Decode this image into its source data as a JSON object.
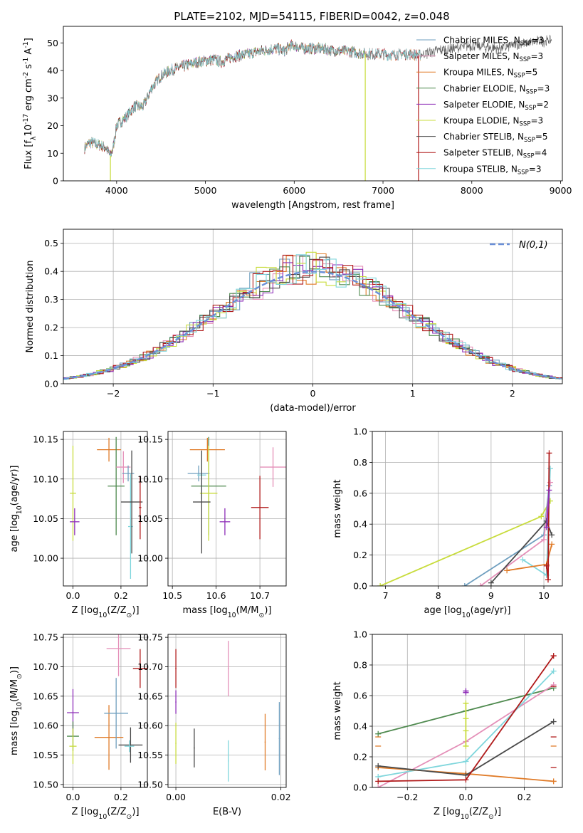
{
  "figure_title": "PLATE=2102, MJD=54115, FIBERID=0042, z=0.048",
  "colors": {
    "Chabrier MILES": "#6f9fbf",
    "Salpeter MILES": "#e48fb8",
    "Kroupa MILES": "#e07b28",
    "Chabrier ELODIE": "#4f8a4f",
    "Salpeter ELODIE": "#8e2eb8",
    "Kroupa ELODIE": "#c8dc3c",
    "Chabrier STELIB": "#4a4a4a",
    "Salpeter STELIB": "#b01a1a",
    "Kroupa STELIB": "#7fd6dc",
    "Gaussian": "#6a8fd8"
  },
  "chart_data": [
    {
      "id": "spectrum",
      "type": "line",
      "xlabel": "wavelength [Angstrom, rest frame]",
      "ylabel": "Flux [f$_\\lambda$10$^{-17}$ erg cm$^{-2}$ s$^{-1}$ A$^{-1}$]",
      "xlim": [
        3400,
        9020
      ],
      "ylim": [
        0,
        56
      ],
      "xticks": [
        4000,
        5000,
        6000,
        7000,
        8000,
        9000
      ],
      "yticks": [
        0,
        10,
        20,
        30,
        40,
        50
      ],
      "legend_position": "top-right",
      "legend": [
        {
          "model": "Chabrier MILES",
          "label": "Chabrier MILES, N",
          "n": "=3"
        },
        {
          "model": "Salpeter MILES",
          "label": "Salpeter MILES, N",
          "n": "=3"
        },
        {
          "model": "Kroupa MILES",
          "label": "Kroupa MILES, N",
          "n": "=5"
        },
        {
          "model": "Chabrier ELODIE",
          "label": "Chabrier ELODIE, N",
          "n": "=3"
        },
        {
          "model": "Salpeter ELODIE",
          "label": "Salpeter ELODIE, N",
          "n": "=2"
        },
        {
          "model": "Kroupa ELODIE",
          "label": "Kroupa ELODIE, N",
          "n": "=3"
        },
        {
          "model": "Chabrier STELIB",
          "label": "Chabrier STELIB, N",
          "n": "=5"
        },
        {
          "model": "Salpeter STELIB",
          "label": "Salpeter STELIB, N",
          "n": "=4"
        },
        {
          "model": "Kroupa STELIB",
          "label": "Kroupa STELIB, N",
          "n": "=3"
        }
      ],
      "legend_subscript": "SSP",
      "continuum": [
        [
          3640,
          12
        ],
        [
          3700,
          14
        ],
        [
          3800,
          13
        ],
        [
          3880,
          12
        ],
        [
          3930,
          9
        ],
        [
          3960,
          12
        ],
        [
          4000,
          20
        ],
        [
          4100,
          23
        ],
        [
          4200,
          27
        ],
        [
          4300,
          27
        ],
        [
          4400,
          34
        ],
        [
          4500,
          38
        ],
        [
          4600,
          40
        ],
        [
          4700,
          41
        ],
        [
          4800,
          42
        ],
        [
          4900,
          43
        ],
        [
          5000,
          43.5
        ],
        [
          5100,
          44
        ],
        [
          5180,
          43
        ],
        [
          5300,
          45
        ],
        [
          5400,
          45.5
        ],
        [
          5500,
          46
        ],
        [
          5600,
          47
        ],
        [
          5700,
          47.5
        ],
        [
          5800,
          48
        ],
        [
          5890,
          47
        ],
        [
          5950,
          49
        ],
        [
          6000,
          49
        ],
        [
          6100,
          48
        ],
        [
          6200,
          48
        ],
        [
          6300,
          48
        ],
        [
          6400,
          47.5
        ],
        [
          6500,
          47
        ],
        [
          6600,
          47
        ],
        [
          6700,
          46.5
        ],
        [
          6800,
          46
        ],
        [
          6900,
          46
        ],
        [
          7000,
          46
        ],
        [
          7100,
          45.5
        ],
        [
          7200,
          46
        ],
        [
          7300,
          46
        ],
        [
          7400,
          45.5
        ]
      ],
      "spikes": [
        {
          "model": "Kroupa ELODIE",
          "x": 3930,
          "y": 0
        },
        {
          "model": "Kroupa ELODIE",
          "x": 6800,
          "y": 0
        },
        {
          "model": "Salpeter STELIB",
          "x": 7400,
          "y": 0
        }
      ],
      "extension": [
        [
          7400,
          46
        ],
        [
          7600,
          47
        ],
        [
          7800,
          48
        ],
        [
          8000,
          49
        ],
        [
          8300,
          48
        ],
        [
          8600,
          50
        ],
        [
          8900,
          51
        ]
      ]
    },
    {
      "id": "residuals",
      "type": "step-histogram",
      "xlabel": "(data-model)/error",
      "ylabel": "Normed distribution",
      "xlim": [
        -2.5,
        2.5
      ],
      "ylim": [
        0,
        0.55
      ],
      "xticks": [
        -2,
        -1,
        0,
        1,
        2
      ],
      "yticks": [
        0.0,
        0.1,
        0.2,
        0.3,
        0.4,
        0.5
      ],
      "gaussian_label": "N(0,1)",
      "legend_position": "top-right",
      "bin_width": 0.1,
      "grid": true
    },
    {
      "id": "age_vs_Z",
      "type": "errorbar",
      "xlabel": "Z [log$_{10}$(Z/Z$_\\odot$)]",
      "ylabel": "age  [log$_{10}$(age/yr)]",
      "xlim": [
        -0.04,
        0.31
      ],
      "ylim": [
        9.965,
        10.16
      ],
      "xticks": [
        0.0,
        0.2
      ],
      "yticks": [
        10.0,
        10.05,
        10.1,
        10.15
      ],
      "points": [
        {
          "model": "Kroupa ELODIE",
          "x": 0.0,
          "y": 10.082,
          "xerr": 0.013,
          "yerr": 0.06
        },
        {
          "model": "Salpeter ELODIE",
          "x": 0.007,
          "y": 10.046,
          "xerr": 0.02,
          "yerr": 0.017
        },
        {
          "model": "Kroupa MILES",
          "x": 0.15,
          "y": 10.137,
          "xerr": 0.05,
          "yerr": 0.015
        },
        {
          "model": "Chabrier ELODIE",
          "x": 0.18,
          "y": 10.091,
          "xerr": 0.035,
          "yerr": 0.062
        },
        {
          "model": "Salpeter MILES",
          "x": 0.21,
          "y": 10.115,
          "xerr": 0.03,
          "yerr": 0.02
        },
        {
          "model": "Chabrier MILES",
          "x": 0.23,
          "y": 10.107,
          "xerr": 0.025,
          "yerr": 0.01
        },
        {
          "model": "Kroupa STELIB",
          "x": 0.24,
          "y": 10.04,
          "xerr": 0.01,
          "yerr": 0.066
        },
        {
          "model": "Chabrier STELIB",
          "x": 0.245,
          "y": 10.071,
          "xerr": 0.045,
          "yerr": 0.065
        },
        {
          "model": "Salpeter STELIB",
          "x": 0.28,
          "y": 10.064,
          "xerr": 0.005,
          "yerr": 0.04
        }
      ]
    },
    {
      "id": "age_vs_mass",
      "type": "errorbar",
      "xlabel": "mass [log$_{10}$(M/M$_\\odot$)]",
      "ylabel": "",
      "xlim": [
        10.49,
        10.76
      ],
      "ylim": [
        9.965,
        10.16
      ],
      "xticks": [
        10.5,
        10.6,
        10.7
      ],
      "yticks": [
        10.0,
        10.05,
        10.1,
        10.15
      ],
      "points": [
        {
          "model": "Kroupa MILES",
          "x": 10.58,
          "y": 10.137,
          "xerr": 0.04,
          "yerr": 0.015
        },
        {
          "model": "Chabrier MILES",
          "x": 10.56,
          "y": 10.107,
          "xerr": 0.025,
          "yerr": 0.01
        },
        {
          "model": "Kroupa STELIB",
          "x": 10.567,
          "y": 10.105,
          "xerr": 0.01,
          "yerr": 0.03
        },
        {
          "model": "Chabrier ELODIE",
          "x": 10.583,
          "y": 10.091,
          "xerr": 0.04,
          "yerr": 0.062
        },
        {
          "model": "Kroupa ELODIE",
          "x": 10.583,
          "y": 10.082,
          "xerr": 0.02,
          "yerr": 0.06
        },
        {
          "model": "Chabrier STELIB",
          "x": 10.567,
          "y": 10.071,
          "xerr": 0.02,
          "yerr": 0.065
        },
        {
          "model": "Salpeter ELODIE",
          "x": 10.62,
          "y": 10.046,
          "xerr": 0.012,
          "yerr": 0.017
        },
        {
          "model": "Salpeter STELIB",
          "x": 10.7,
          "y": 10.064,
          "xerr": 0.02,
          "yerr": 0.04
        },
        {
          "model": "Salpeter MILES",
          "x": 10.73,
          "y": 10.115,
          "xerr": 0.03,
          "yerr": 0.025
        }
      ]
    },
    {
      "id": "weight_vs_age",
      "type": "line",
      "xlabel": "age  [log$_{10}$(age/yr)]",
      "ylabel": "mass weight",
      "xlim": [
        6.75,
        10.35
      ],
      "ylim": [
        0,
        1
      ],
      "xticks": [
        7,
        8,
        9,
        10
      ],
      "yticks": [
        0.0,
        0.2,
        0.4,
        0.6,
        0.8,
        1.0
      ],
      "series": [
        {
          "model": "Kroupa ELODIE",
          "x": [
            6.9,
            9.95,
            10.12
          ],
          "y": [
            0.0,
            0.45,
            0.55
          ]
        },
        {
          "model": "Kroupa STELIB",
          "x": [
            9.6,
            10.05,
            10.12
          ],
          "y": [
            0.17,
            0.07,
            0.76
          ]
        },
        {
          "model": "Chabrier MILES",
          "x": [
            8.5,
            10.0,
            10.1
          ],
          "y": [
            0.0,
            0.33,
            0.65
          ]
        },
        {
          "model": "Salpeter MILES",
          "x": [
            8.8,
            10.0,
            10.12
          ],
          "y": [
            0.0,
            0.3,
            0.67
          ]
        },
        {
          "model": "Kroupa MILES",
          "x": [
            9.3,
            10.05,
            10.15
          ],
          "y": [
            0.1,
            0.14,
            0.27
          ]
        },
        {
          "model": "Chabrier STELIB",
          "x": [
            9.0,
            10.05,
            10.15
          ],
          "y": [
            0.02,
            0.42,
            0.33
          ]
        },
        {
          "model": "Salpeter STELIB",
          "x": [
            10.05,
            10.08,
            10.1
          ],
          "y": [
            0.13,
            0.04,
            0.86
          ]
        },
        {
          "model": "Salpeter ELODIE",
          "x": [
            10.05,
            10.1
          ],
          "y": [
            0.38,
            0.62
          ]
        }
      ]
    },
    {
      "id": "mass_vs_Z",
      "type": "errorbar",
      "xlabel": "Z [log$_{10}$(Z/Z$_\\odot$)]",
      "ylabel": "mass [log$_{10}$(M/M$_\\odot$)]",
      "xlim": [
        -0.04,
        0.31
      ],
      "ylim": [
        10.495,
        10.755
      ],
      "xticks": [
        0.0,
        0.2
      ],
      "yticks": [
        10.5,
        10.55,
        10.6,
        10.65,
        10.7,
        10.75
      ],
      "points": [
        {
          "model": "Salpeter ELODIE",
          "x": 0.0,
          "y": 10.622,
          "xerr": 0.025,
          "yerr": 0.04
        },
        {
          "model": "Chabrier ELODIE",
          "x": 0.0,
          "y": 10.582,
          "xerr": 0.025,
          "yerr": 0.025
        },
        {
          "model": "Kroupa ELODIE",
          "x": 0.0,
          "y": 10.565,
          "xerr": 0.015,
          "yerr": 0.03
        },
        {
          "model": "Salpeter MILES",
          "x": 0.19,
          "y": 10.731,
          "xerr": 0.05,
          "yerr": 0.047
        },
        {
          "model": "Kroupa MILES",
          "x": 0.15,
          "y": 10.58,
          "xerr": 0.06,
          "yerr": 0.055
        },
        {
          "model": "Chabrier MILES",
          "x": 0.18,
          "y": 10.621,
          "xerr": 0.05,
          "yerr": 0.06
        },
        {
          "model": "Salpeter STELIB",
          "x": 0.28,
          "y": 10.697,
          "xerr": 0.03,
          "yerr": 0.033
        },
        {
          "model": "Chabrier STELIB",
          "x": 0.24,
          "y": 10.567,
          "xerr": 0.05,
          "yerr": 0.03
        },
        {
          "model": "Kroupa STELIB",
          "x": 0.235,
          "y": 10.565,
          "xerr": 0.02,
          "yerr": 0.01
        }
      ]
    },
    {
      "id": "mass_vs_EBV",
      "type": "errorbar",
      "xlabel": "E(B-V)",
      "ylabel": "",
      "xlim": [
        -0.0015,
        0.021
      ],
      "ylim": [
        10.495,
        10.755
      ],
      "xticks": [
        0.0,
        0.02
      ],
      "yticks": [
        10.5,
        10.55,
        10.6,
        10.65,
        10.7,
        10.75
      ],
      "points": [
        {
          "model": "Salpeter STELIB",
          "x": 0.0,
          "y": 10.697,
          "xerr": 0.0001,
          "yerr": 0.033
        },
        {
          "model": "Salpeter ELODIE",
          "x": 0.0,
          "y": 10.64,
          "xerr": 0.0001,
          "yerr": 0.02
        },
        {
          "model": "Kroupa ELODIE",
          "x": 0.0,
          "y": 10.57,
          "xerr": 0.0001,
          "yerr": 0.035
        },
        {
          "model": "Chabrier STELIB",
          "x": 0.0035,
          "y": 10.562,
          "xerr": 0.0001,
          "yerr": 0.033
        },
        {
          "model": "Salpeter MILES",
          "x": 0.01,
          "y": 10.697,
          "xerr": 0.0001,
          "yerr": 0.047
        },
        {
          "model": "Kroupa STELIB",
          "x": 0.01,
          "y": 10.54,
          "xerr": 0.0001,
          "yerr": 0.035
        },
        {
          "model": "Kroupa MILES",
          "x": 0.017,
          "y": 10.572,
          "xerr": 0.0001,
          "yerr": 0.048
        },
        {
          "model": "Chabrier MILES",
          "x": 0.0197,
          "y": 10.578,
          "xerr": 0.0001,
          "yerr": 0.062
        }
      ]
    },
    {
      "id": "weight_vs_Z",
      "type": "line",
      "xlabel": "Z [log$_{10}$(Z/Z$_\\odot$)]",
      "ylabel": "mass weight",
      "xlim": [
        -0.32,
        0.33
      ],
      "ylim": [
        0,
        1
      ],
      "xticks": [
        -0.2,
        0.0,
        0.2
      ],
      "yticks": [
        0.0,
        0.2,
        0.4,
        0.6,
        0.8,
        1.0
      ],
      "series": [
        {
          "model": "Chabrier ELODIE",
          "x": [
            -0.3,
            0.0,
            0.3
          ],
          "y": [
            0.35,
            0.5,
            0.65
          ]
        },
        {
          "model": "Salpeter MILES",
          "x": [
            -0.3,
            0.0,
            0.3
          ],
          "y": [
            0.0,
            0.3,
            0.67
          ]
        },
        {
          "model": "Kroupa STELIB",
          "x": [
            -0.3,
            0.0,
            0.3
          ],
          "y": [
            0.07,
            0.17,
            0.76
          ]
        },
        {
          "model": "Kroupa MILES",
          "x": [
            -0.3,
            0.0,
            0.3
          ],
          "y": [
            0.13,
            0.09,
            0.04
          ]
        },
        {
          "model": "Chabrier STELIB",
          "x": [
            -0.3,
            0.0,
            0.3
          ],
          "y": [
            0.14,
            0.08,
            0.43
          ]
        },
        {
          "model": "Salpeter STELIB",
          "x": [
            -0.3,
            0.0,
            0.3
          ],
          "y": [
            0.04,
            0.05,
            0.86
          ]
        },
        {
          "model": "Kroupa ELODIE",
          "x": [
            0.0,
            0.0
          ],
          "y": [
            0.27,
            0.55
          ]
        },
        {
          "model": "Salpeter ELODIE",
          "x": [
            0.0,
            0.0
          ],
          "y": [
            0.62,
            0.63
          ]
        }
      ],
      "vertical_marks": [
        {
          "model": "Kroupa ELODIE",
          "x": 0.0,
          "y": [
            0.27,
            0.37,
            0.45,
            0.55
          ]
        },
        {
          "model": "Salpeter ELODIE",
          "x": 0.0,
          "y": [
            0.62,
            0.63
          ]
        },
        {
          "model": "Kroupa MILES",
          "x": -0.3,
          "y": [
            0.27,
            0.33
          ]
        },
        {
          "model": "Salpeter STELIB",
          "x": 0.3,
          "y": [
            0.86,
            0.66,
            0.33,
            0.13
          ]
        },
        {
          "model": "Kroupa MILES",
          "x": 0.3,
          "y": [
            0.27,
            0.04
          ]
        }
      ]
    }
  ]
}
